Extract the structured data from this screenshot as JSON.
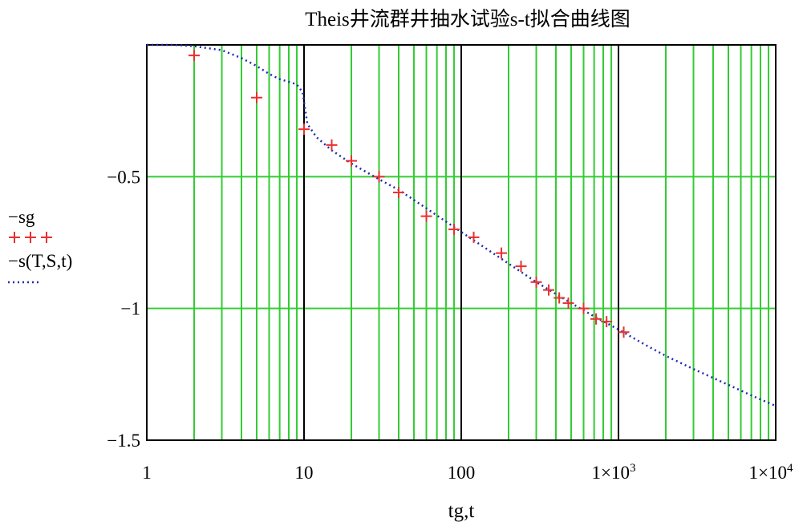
{
  "chart_data": {
    "type": "scatter",
    "title": "Theis井流群井抽水试验s-t拟合曲线图",
    "xlabel": "tg,t",
    "ylabel": "",
    "x_scale": "log",
    "xlim": [
      1,
      10000
    ],
    "ylim": [
      -1.5,
      0
    ],
    "x_tick_labels": [
      "1",
      "10",
      "100",
      "1×10",
      "1×10"
    ],
    "x_tick_exponents": [
      "",
      "",
      "",
      "3",
      "4"
    ],
    "x_tick_values": [
      1,
      10,
      100,
      1000,
      10000
    ],
    "y_tick_labels": [
      "−0.5",
      "−1",
      "−1.5"
    ],
    "y_tick_values": [
      -0.5,
      -1,
      -1.5
    ],
    "grid": true,
    "grid_color": "#33cc33",
    "major_grid_color": "#000000",
    "legend_position": "left",
    "legend": [
      {
        "label": "−sg",
        "marker": "+++",
        "color": "#e8312f"
      },
      {
        "label": "−s(T,S,t)",
        "marker": "·····",
        "color": "#1f2bb0"
      }
    ],
    "series": [
      {
        "name": "−sg",
        "style": "marker",
        "color": "#e8312f",
        "x": [
          2,
          5,
          10,
          15,
          20,
          30,
          40,
          60,
          90,
          120,
          180,
          240,
          300,
          360,
          420,
          480,
          600,
          720,
          840,
          1080
        ],
        "y": [
          -0.04,
          -0.2,
          -0.32,
          -0.38,
          -0.44,
          -0.5,
          -0.56,
          -0.65,
          -0.7,
          -0.73,
          -0.79,
          -0.84,
          -0.9,
          -0.93,
          -0.96,
          -0.98,
          -1.0,
          -1.04,
          -1.05,
          -1.09
        ]
      },
      {
        "name": "−s(T,S,t)",
        "style": "dotted-line",
        "color": "#1f2bb0",
        "x": [
          1,
          1.5,
          2,
          3,
          4,
          5,
          6,
          7,
          8,
          9,
          9.8,
          10.5,
          12,
          15,
          20,
          30,
          40,
          60,
          100,
          150,
          200,
          300,
          500,
          700,
          1000,
          1500,
          2000,
          3000,
          5000,
          7000,
          10000
        ],
        "y": [
          0,
          0,
          -0.005,
          -0.02,
          -0.05,
          -0.08,
          -0.11,
          -0.13,
          -0.14,
          -0.15,
          -0.18,
          -0.3,
          -0.35,
          -0.4,
          -0.45,
          -0.51,
          -0.55,
          -0.62,
          -0.71,
          -0.78,
          -0.83,
          -0.9,
          -0.98,
          -1.03,
          -1.08,
          -1.14,
          -1.18,
          -1.23,
          -1.29,
          -1.33,
          -1.37
        ]
      }
    ]
  }
}
